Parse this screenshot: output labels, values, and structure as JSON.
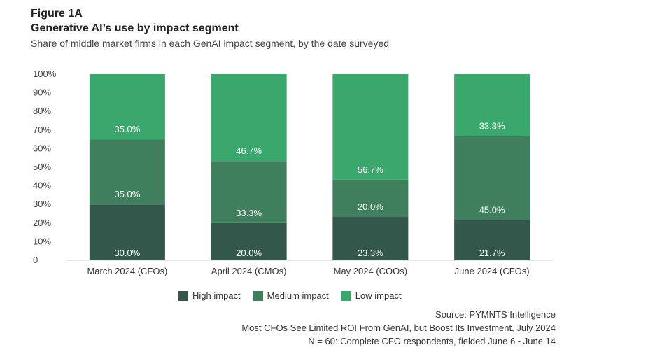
{
  "header": {
    "figure_label": "Figure 1A",
    "title": "Generative AI’s use by impact segment",
    "subtitle": "Share of middle market firms in each GenAI impact segment, by the date surveyed"
  },
  "chart_data": {
    "type": "bar",
    "stacked": true,
    "categories": [
      "March 2024 (CFOs)",
      "April 2024 (CMOs)",
      "May 2024 (COOs)",
      "June 2024 (CFOs)"
    ],
    "series": [
      {
        "name": "High impact",
        "color": "#33574a",
        "values": [
          30.0,
          20.0,
          23.3,
          21.7
        ],
        "labels": [
          "30.0%",
          "20.0%",
          "23.3%",
          "21.7%"
        ]
      },
      {
        "name": "Medium impact",
        "color": "#3f7f5e",
        "values": [
          35.0,
          33.3,
          20.0,
          45.0
        ],
        "labels": [
          "35.0%",
          "33.3%",
          "20.0%",
          "45.0%"
        ]
      },
      {
        "name": "Low impact",
        "color": "#3aa76d",
        "values": [
          35.0,
          46.7,
          56.7,
          33.3
        ],
        "labels": [
          "35.0%",
          "46.7%",
          "56.7%",
          "33.3%"
        ]
      }
    ],
    "y_ticks": [
      "0",
      "10%",
      "20%",
      "30%",
      "40%",
      "50%",
      "60%",
      "70%",
      "80%",
      "90%",
      "100%"
    ],
    "ylim": [
      0,
      100
    ],
    "grid": false,
    "legend_position": "bottom-center"
  },
  "footer": {
    "source": "Source: PYMNTS Intelligence",
    "report": "Most CFOs See Limited ROI From GenAI, but Boost Its Investment, July 2024",
    "sample": "N = 60: Complete CFO respondents, fielded June 6 - June 14"
  }
}
